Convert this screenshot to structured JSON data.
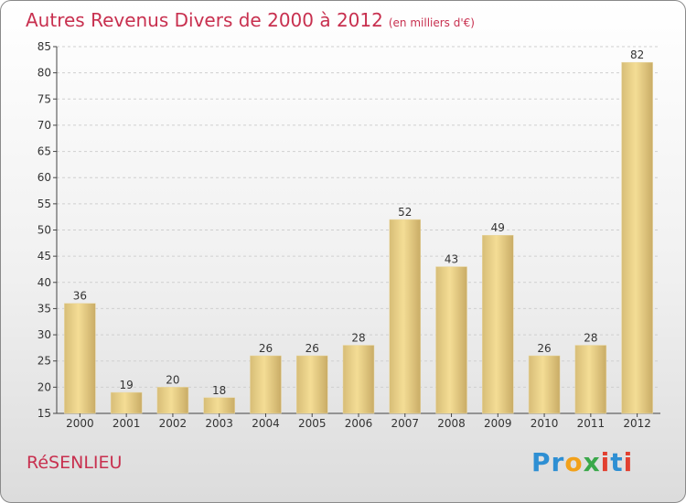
{
  "header": {
    "title": "Autres Revenus Divers de 2000 à 2012",
    "subtitle": "(en milliers d'€)"
  },
  "footer": {
    "location": "RéSENLIEU",
    "logo_letters": [
      {
        "char": "P",
        "color": "#2e8fd3"
      },
      {
        "char": "r",
        "color": "#2e8fd3"
      },
      {
        "char": "o",
        "color": "#f2a11a"
      },
      {
        "char": "x",
        "color": "#3aa84a"
      },
      {
        "char": "i",
        "color": "#e24030"
      },
      {
        "char": "t",
        "color": "#2e8fd3"
      },
      {
        "char": "i",
        "color": "#e24030"
      }
    ]
  },
  "colors": {
    "title": "#c8304f",
    "bar_light": "#f4dd95",
    "bar_dark": "#c9ac66",
    "grid": "#cfcfcf",
    "axis": "#444444"
  },
  "chart_data": {
    "type": "bar",
    "title": "Autres Revenus Divers de 2000 à 2012",
    "subtitle": "(en milliers d'€)",
    "categories": [
      "2000",
      "2001",
      "2002",
      "2003",
      "2004",
      "2005",
      "2006",
      "2007",
      "2008",
      "2009",
      "2010",
      "2011",
      "2012"
    ],
    "values": [
      36,
      19,
      20,
      18,
      26,
      26,
      28,
      52,
      43,
      49,
      26,
      28,
      82
    ],
    "ylim": [
      15,
      85
    ],
    "yticks": [
      15,
      20,
      25,
      30,
      35,
      40,
      45,
      50,
      55,
      60,
      65,
      70,
      75,
      80,
      85
    ],
    "grid": true,
    "xlabel": "",
    "ylabel": ""
  }
}
